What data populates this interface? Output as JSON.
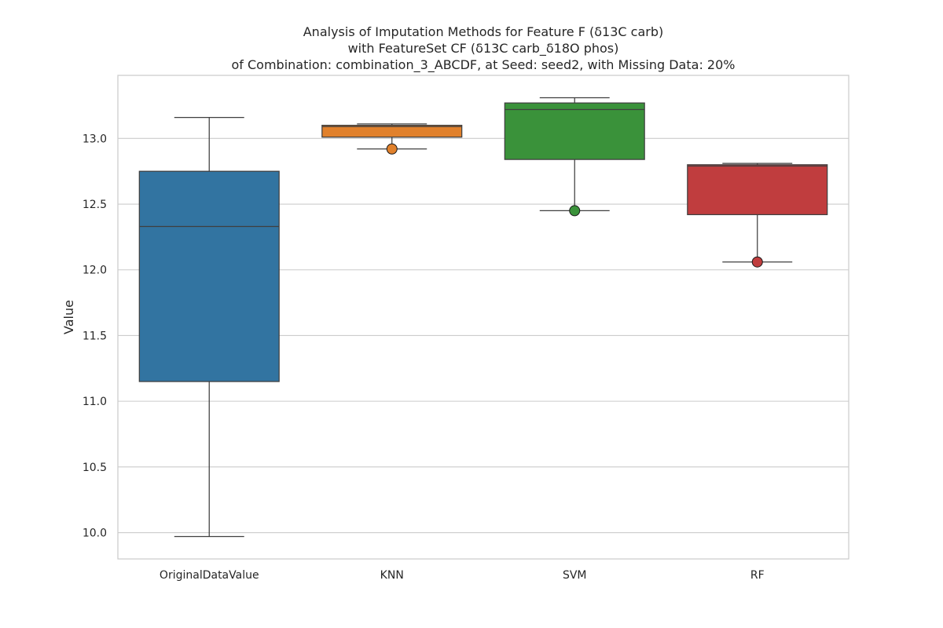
{
  "chart_data": {
    "type": "box",
    "title": [
      "Analysis of Imputation Methods for Feature F (δ13C carb)",
      "with FeatureSet CF (δ13C carb_δ18O phos)",
      "of Combination: combination_3_ABCDF, at Seed: seed2, with Missing Data: 20%"
    ],
    "xlabel": "",
    "ylabel": "Value",
    "ylim": [
      9.8,
      13.48
    ],
    "yticks": [
      "10.0",
      "10.5",
      "11.0",
      "11.5",
      "12.0",
      "12.5",
      "13.0"
    ],
    "grid": "horizontal",
    "legend": "none",
    "categories": [
      "OriginalDataValue",
      "KNN",
      "SVM",
      "RF"
    ],
    "series": [
      {
        "category": "OriginalDataValue",
        "color": "#3274a1",
        "whisker_low": 9.97,
        "q1": 11.15,
        "median": 12.33,
        "q3": 12.75,
        "whisker_high": 13.16,
        "outliers": []
      },
      {
        "category": "KNN",
        "color": "#e1812c",
        "whisker_low": 12.92,
        "q1": 13.01,
        "median": 13.09,
        "q3": 13.1,
        "whisker_high": 13.11,
        "outliers": [
          12.92
        ]
      },
      {
        "category": "SVM",
        "color": "#3a923a",
        "whisker_low": 12.45,
        "q1": 12.84,
        "median": 13.22,
        "q3": 13.27,
        "whisker_high": 13.31,
        "outliers": [
          12.45
        ]
      },
      {
        "category": "RF",
        "color": "#c03d3e",
        "whisker_low": 12.06,
        "q1": 12.42,
        "median": 12.79,
        "q3": 12.8,
        "whisker_high": 12.81,
        "outliers": [
          12.06
        ]
      }
    ]
  }
}
